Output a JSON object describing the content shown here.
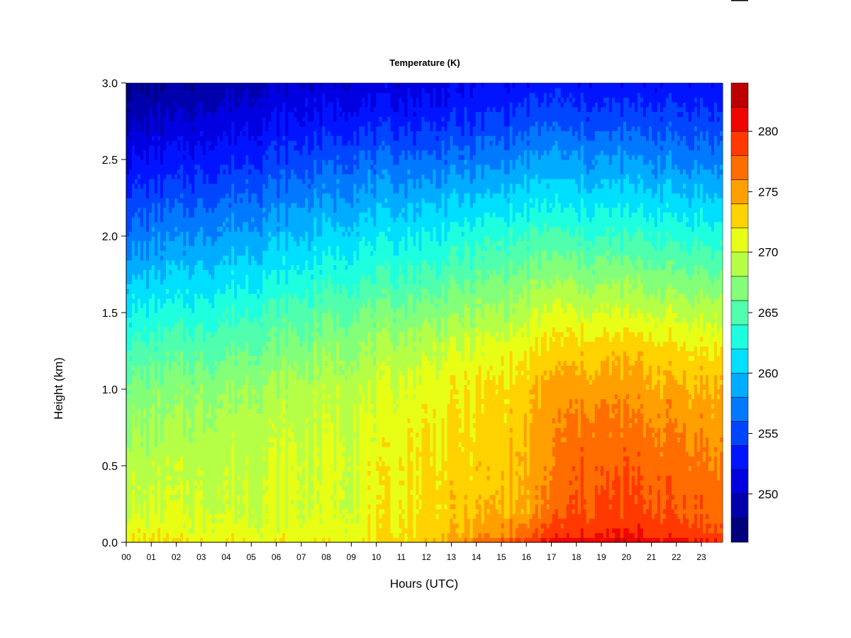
{
  "chart_data": {
    "type": "heatmap",
    "title": "Temperature (K)",
    "xlabel": "Hours (UTC)",
    "ylabel": "Height (km)",
    "x_tick_labels": [
      "00",
      "01",
      "02",
      "03",
      "04",
      "05",
      "06",
      "07",
      "08",
      "09",
      "10",
      "11",
      "12",
      "13",
      "14",
      "15",
      "16",
      "17",
      "18",
      "19",
      "20",
      "21",
      "22",
      "23"
    ],
    "xlim": [
      0,
      23.85
    ],
    "y_tick_labels": [
      "0.0",
      "0.5",
      "1.0",
      "1.5",
      "2.0",
      "2.5",
      "3.0"
    ],
    "ylim": [
      0,
      3.0
    ],
    "colorbar": {
      "range": [
        246,
        284
      ],
      "levels": [
        246,
        248,
        250,
        252,
        254,
        256,
        258,
        260,
        262,
        264,
        266,
        268,
        270,
        272,
        274,
        276,
        278,
        280,
        282,
        284
      ],
      "colors": [
        "#00007f",
        "#0000ad",
        "#0000e0",
        "#0014ff",
        "#0045ff",
        "#0079ff",
        "#00acff",
        "#00dfff",
        "#1effdf",
        "#50ffad",
        "#83ff7a",
        "#b6ff47",
        "#e8ff15",
        "#ffd200",
        "#ffa000",
        "#ff6c00",
        "#ff3900",
        "#f00600",
        "#bd0000",
        "#8a0000"
      ],
      "tick_labels": [
        "250",
        "255",
        "260",
        "265",
        "270",
        "275",
        "280"
      ],
      "tick_values": [
        250,
        255,
        260,
        265,
        270,
        275,
        280
      ]
    },
    "temperature_grid": {
      "x_hours": [
        0,
        3,
        6,
        9,
        12,
        14,
        16,
        17,
        18,
        20,
        22,
        23.85
      ],
      "z_km": [
        0,
        0.05,
        0.2,
        0.5,
        0.75,
        1.0,
        1.25,
        1.5,
        1.75,
        2.0,
        2.25,
        2.5,
        2.75,
        3.0
      ],
      "temperature_K": [
        [
          272.0,
          272.0,
          272.0,
          272.0,
          273.5,
          277.0,
          279.0,
          281.0,
          282.0,
          282.0,
          281.0,
          280.0
        ],
        [
          271.5,
          271.0,
          271.0,
          271.0,
          273.0,
          275.0,
          277.0,
          279.0,
          279.5,
          280.0,
          279.0,
          278.0
        ],
        [
          270.0,
          270.0,
          270.0,
          270.5,
          272.5,
          273.5,
          274.5,
          277.0,
          278.0,
          278.5,
          278.0,
          277.0
        ],
        [
          269.0,
          269.5,
          270.0,
          270.5,
          272.5,
          273.0,
          274.0,
          276.0,
          277.5,
          277.5,
          277.0,
          276.0
        ],
        [
          268.0,
          268.5,
          269.5,
          270.0,
          272.0,
          272.5,
          273.5,
          275.5,
          276.5,
          276.5,
          276.0,
          275.0
        ],
        [
          266.5,
          267.5,
          268.5,
          269.5,
          271.0,
          272.0,
          273.0,
          275.0,
          275.0,
          275.0,
          274.5,
          274.0
        ],
        [
          264.5,
          265.5,
          266.5,
          268.0,
          269.5,
          270.5,
          271.5,
          273.0,
          273.0,
          273.5,
          272.5,
          272.0
        ],
        [
          262.0,
          263.0,
          264.5,
          266.0,
          267.0,
          268.0,
          269.0,
          270.5,
          270.0,
          270.0,
          269.5,
          269.0
        ],
        [
          259.5,
          260.5,
          262.0,
          263.5,
          264.5,
          265.5,
          266.5,
          267.5,
          267.0,
          267.0,
          266.5,
          266.0
        ],
        [
          257.0,
          258.0,
          259.5,
          261.0,
          262.0,
          263.0,
          264.0,
          264.5,
          264.0,
          264.0,
          263.5,
          263.0
        ],
        [
          254.5,
          255.5,
          257.0,
          258.5,
          259.5,
          260.0,
          261.0,
          261.5,
          261.0,
          261.0,
          260.5,
          260.0
        ],
        [
          252.0,
          253.0,
          254.5,
          256.0,
          256.5,
          257.0,
          258.0,
          258.5,
          258.0,
          258.0,
          257.5,
          257.0
        ],
        [
          249.5,
          250.5,
          252.0,
          253.0,
          253.5,
          254.0,
          255.0,
          255.5,
          255.0,
          255.0,
          255.0,
          254.5
        ],
        [
          247.5,
          248.5,
          250.0,
          250.5,
          251.0,
          252.0,
          252.5,
          253.0,
          252.5,
          252.5,
          252.5,
          252.5
        ]
      ]
    }
  }
}
